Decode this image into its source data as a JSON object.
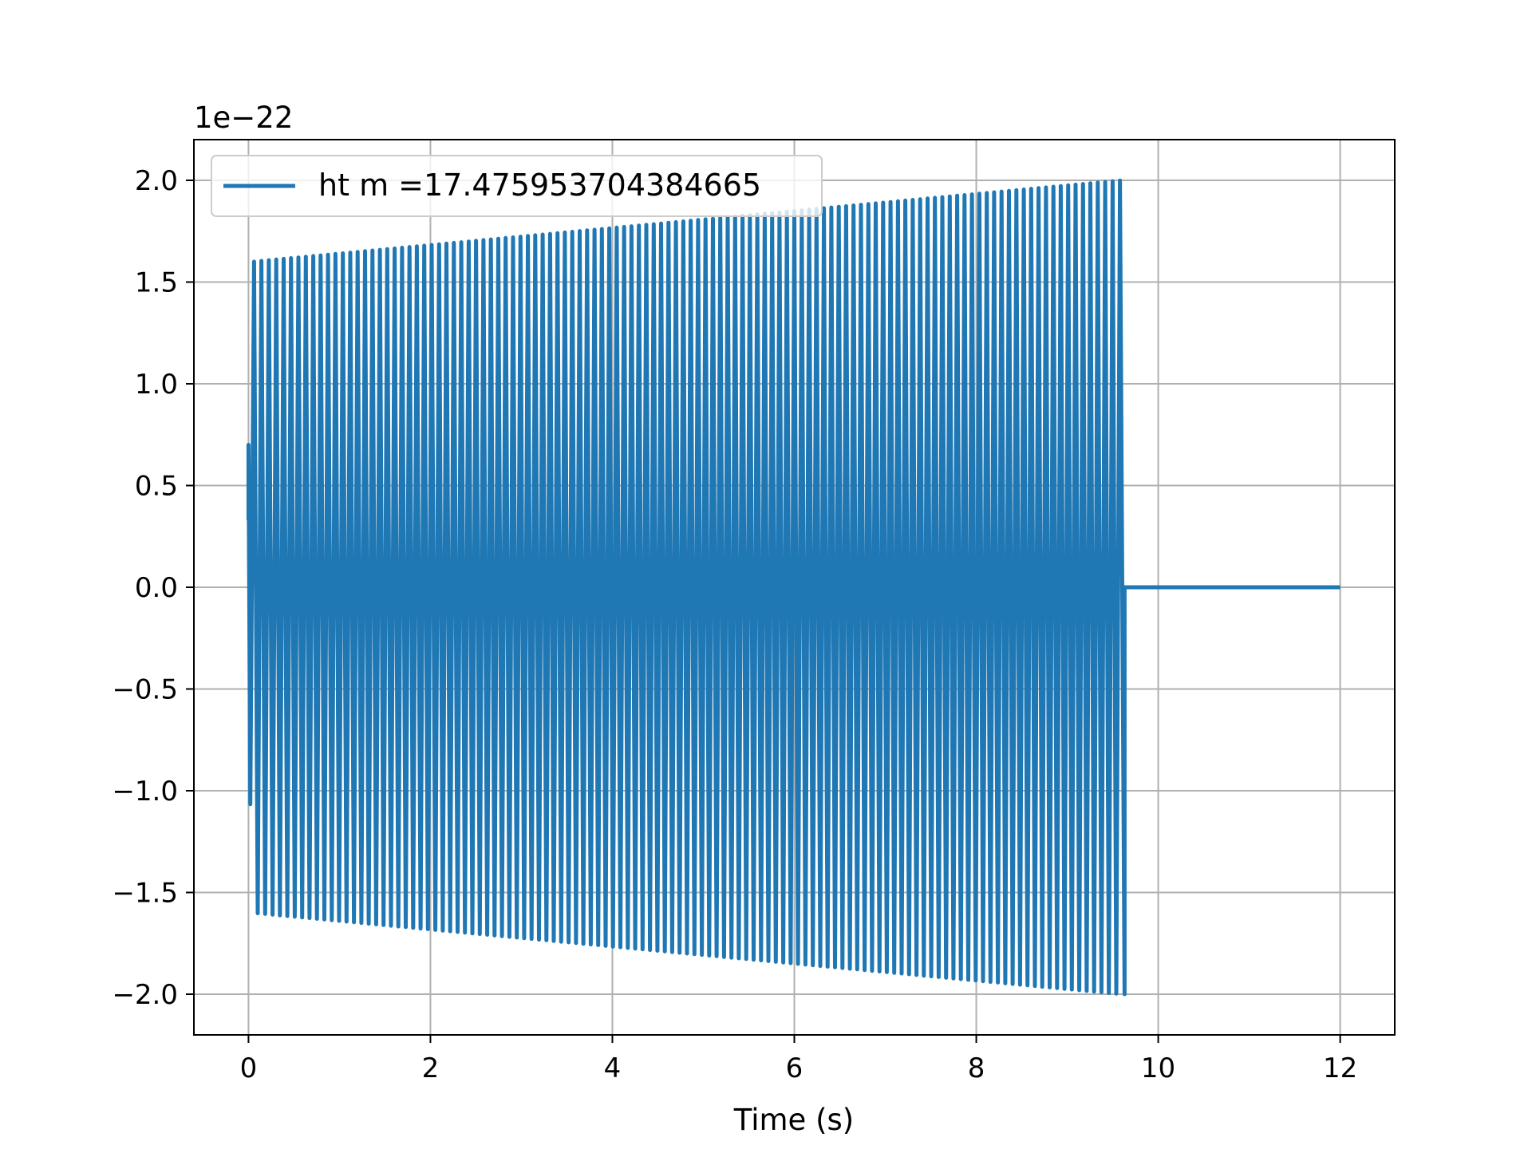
{
  "chart_data": {
    "type": "line",
    "title": "",
    "xlabel": "Time (s)",
    "ylabel": "",
    "y_offset_label": "1e−22",
    "xlim": [
      -0.6,
      12.6
    ],
    "ylim": [
      -2.2,
      2.2
    ],
    "xticks": [
      0,
      2,
      4,
      6,
      8,
      10,
      12
    ],
    "xtick_labels": [
      "0",
      "2",
      "4",
      "6",
      "8",
      "10",
      "12"
    ],
    "yticks": [
      -2.0,
      -1.5,
      -1.0,
      -0.5,
      0.0,
      0.5,
      1.0,
      1.5,
      2.0
    ],
    "ytick_labels": [
      "−2.0",
      "−1.5",
      "−1.0",
      "−0.5",
      "0.0",
      "0.5",
      "1.0",
      "1.5",
      "2.0"
    ],
    "grid": true,
    "legend_position": "top-left",
    "series": [
      {
        "name": "ht m =17.475953704384665",
        "color": "#1f77b4",
        "description_points": {
          "signal_start_x": 0.0,
          "initial_peak_y": 0.7,
          "first_cycle_peak_y": 1.6,
          "end_of_chirp_x": 9.6,
          "final_peak_y": 2.0,
          "final_trough_y": -2.0,
          "flat_after_x": 9.6,
          "flat_y": 0.0,
          "series_end_x": 12.0
        },
        "cycles_count": 118,
        "envelope": {
          "x": [
            0.0,
            0.05,
            9.6
          ],
          "amplitude": [
            0.7,
            1.6,
            2.0
          ]
        }
      }
    ]
  }
}
